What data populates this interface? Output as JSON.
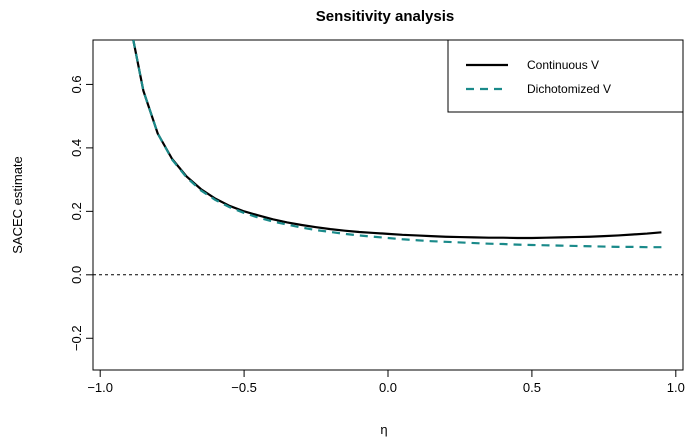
{
  "chart_data": {
    "type": "line",
    "title": "Sensitivity analysis",
    "xlabel": "η",
    "ylabel": "SACEC estimate",
    "xlim": [
      -1.025,
      1.025
    ],
    "ylim": [
      -0.3,
      0.74
    ],
    "x_ticks": [
      -1.0,
      -0.5,
      0.0,
      0.5,
      1.0
    ],
    "x_tick_labels": [
      "−1.0",
      "−0.5",
      "0.0",
      "0.5",
      "1.0"
    ],
    "y_ticks": [
      -0.2,
      0.0,
      0.2,
      0.4,
      0.6
    ],
    "y_tick_labels": [
      "−0.2",
      "0.0",
      "0.2",
      "0.4",
      "0.6"
    ],
    "reference_line": {
      "y": 0.0,
      "style": "dotted",
      "color": "#000000"
    },
    "grid": false,
    "legend": {
      "position": "top-right"
    },
    "series": [
      {
        "name": "Continuous V",
        "color": "#000000",
        "style": "solid",
        "x": [
          -0.885,
          -0.85,
          -0.8,
          -0.75,
          -0.7,
          -0.65,
          -0.6,
          -0.55,
          -0.5,
          -0.45,
          -0.4,
          -0.35,
          -0.3,
          -0.25,
          -0.2,
          -0.15,
          -0.1,
          -0.05,
          0.0,
          0.05,
          0.1,
          0.15,
          0.2,
          0.25,
          0.3,
          0.35,
          0.4,
          0.45,
          0.5,
          0.55,
          0.6,
          0.65,
          0.7,
          0.75,
          0.8,
          0.85,
          0.9,
          0.95
        ],
        "y": [
          0.74,
          0.58,
          0.445,
          0.365,
          0.31,
          0.27,
          0.24,
          0.217,
          0.2,
          0.187,
          0.175,
          0.165,
          0.157,
          0.15,
          0.144,
          0.139,
          0.135,
          0.132,
          0.129,
          0.126,
          0.124,
          0.122,
          0.12,
          0.119,
          0.118,
          0.117,
          0.117,
          0.116,
          0.116,
          0.117,
          0.118,
          0.119,
          0.12,
          0.122,
          0.124,
          0.127,
          0.13,
          0.134
        ]
      },
      {
        "name": "Dichotomized V",
        "color": "#1a8a8a",
        "style": "dashed",
        "x": [
          -0.885,
          -0.85,
          -0.8,
          -0.75,
          -0.7,
          -0.65,
          -0.6,
          -0.55,
          -0.5,
          -0.45,
          -0.4,
          -0.35,
          -0.3,
          -0.25,
          -0.2,
          -0.15,
          -0.1,
          -0.05,
          0.0,
          0.05,
          0.1,
          0.15,
          0.2,
          0.25,
          0.3,
          0.35,
          0.4,
          0.45,
          0.5,
          0.55,
          0.6,
          0.65,
          0.7,
          0.75,
          0.8,
          0.85,
          0.9,
          0.95
        ],
        "y": [
          0.74,
          0.58,
          0.445,
          0.363,
          0.307,
          0.266,
          0.236,
          0.213,
          0.195,
          0.18,
          0.168,
          0.158,
          0.149,
          0.141,
          0.135,
          0.129,
          0.124,
          0.12,
          0.116,
          0.112,
          0.109,
          0.106,
          0.104,
          0.102,
          0.1,
          0.098,
          0.097,
          0.095,
          0.094,
          0.093,
          0.092,
          0.091,
          0.09,
          0.089,
          0.088,
          0.088,
          0.087,
          0.087
        ]
      }
    ]
  }
}
